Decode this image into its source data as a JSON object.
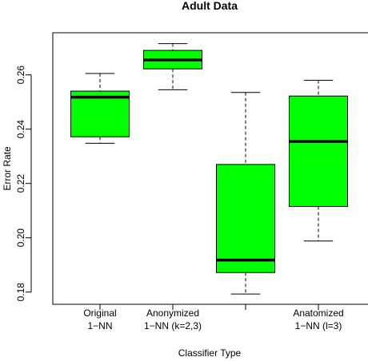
{
  "chart_data": {
    "type": "boxplot",
    "title": "Adult Data",
    "xlabel": "Classifier Type",
    "ylabel": "Error Rate",
    "ylim": [
      0.1755,
      0.2755
    ],
    "yticks": [
      "0.18",
      "0.20",
      "0.22",
      "0.24",
      "0.26"
    ],
    "grid": false,
    "legend": "none",
    "box_color": "#00ff00",
    "categories": [
      {
        "label_line1": "Original",
        "label_line2": "1−NN"
      },
      {
        "label_line1": "Anonymized",
        "label_line2": "1−NN (k=2,3)"
      },
      {
        "label_line1": "",
        "label_line2": ""
      },
      {
        "label_line1": "Anatomized",
        "label_line2": "1−NN (l=3)"
      }
    ],
    "boxes": [
      {
        "min": 0.2348,
        "q1": 0.2372,
        "median": 0.2518,
        "q3": 0.254,
        "max": 0.2605
      },
      {
        "min": 0.2545,
        "q1": 0.2622,
        "median": 0.2655,
        "q3": 0.269,
        "max": 0.2715
      },
      {
        "min": 0.1793,
        "q1": 0.1872,
        "median": 0.1918,
        "q3": 0.227,
        "max": 0.2535
      },
      {
        "min": 0.1988,
        "q1": 0.2115,
        "median": 0.2355,
        "q3": 0.2522,
        "max": 0.258
      }
    ]
  }
}
